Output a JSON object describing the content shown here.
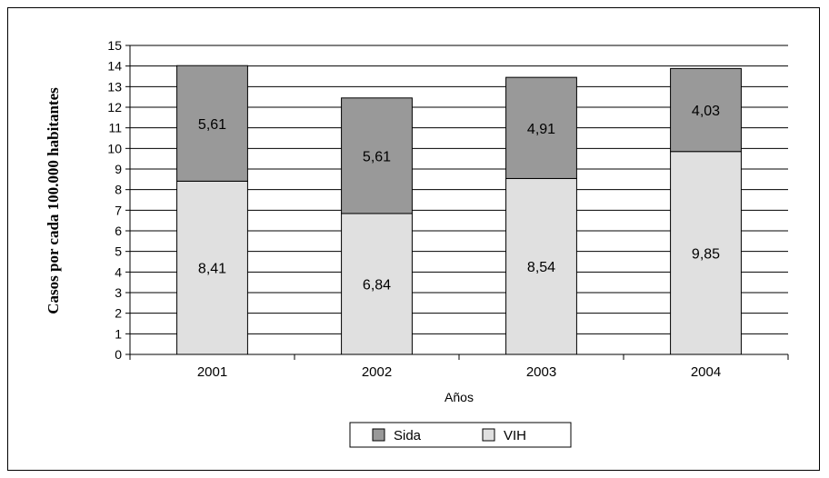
{
  "chart_data": {
    "type": "bar",
    "stacked": true,
    "categories": [
      "2001",
      "2002",
      "2003",
      "2004"
    ],
    "series": [
      {
        "name": "VIH",
        "values": [
          8.41,
          6.84,
          8.54,
          9.85
        ],
        "labels": [
          "8,41",
          "6,84",
          "8,54",
          "9,85"
        ],
        "color": "#e0e0e0"
      },
      {
        "name": "Sida",
        "values": [
          5.61,
          5.61,
          4.91,
          4.03
        ],
        "labels": [
          "5,61",
          "5,61",
          "4,91",
          "4,03"
        ],
        "color": "#999999"
      }
    ],
    "title": "",
    "xlabel": "Años",
    "ylabel": "Casos por cada 100.000 habitantes",
    "ylim": [
      0,
      15
    ],
    "yticks": [
      "0",
      "1",
      "2",
      "3",
      "4",
      "5",
      "6",
      "7",
      "8",
      "9",
      "10",
      "11",
      "12",
      "13",
      "14",
      "15"
    ],
    "grid": true,
    "legend": {
      "placement": "bottom-center",
      "entries": [
        {
          "name": "Sida",
          "color": "#999999"
        },
        {
          "name": "VIH",
          "color": "#e0e0e0"
        }
      ]
    }
  }
}
